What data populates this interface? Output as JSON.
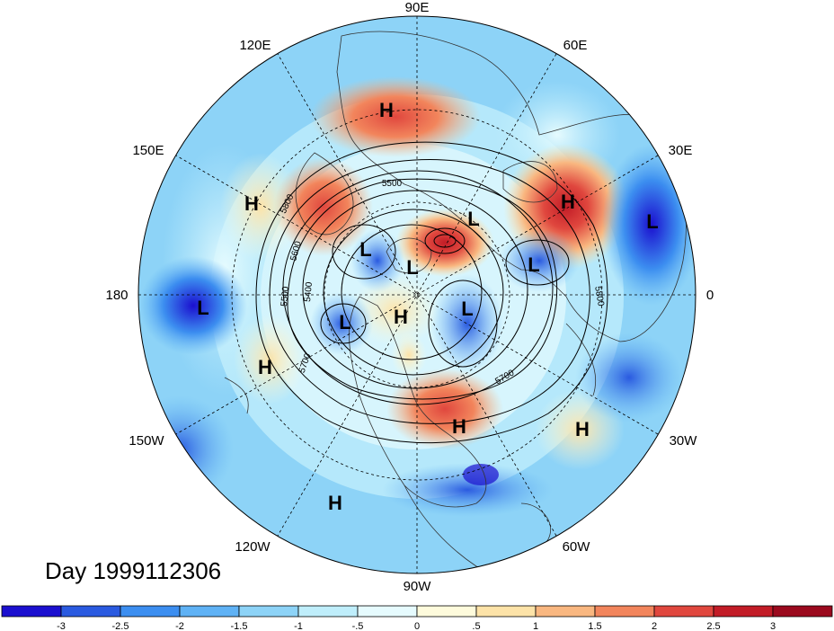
{
  "title": "Day 1999112306",
  "longitude_labels": [
    "90E",
    "60E",
    "30E",
    "0",
    "30W",
    "60W",
    "90W",
    "120W",
    "150W",
    "180",
    "150E",
    "120E"
  ],
  "pressure_systems": [
    {
      "type": "H"
    },
    {
      "type": "H"
    },
    {
      "type": "H"
    },
    {
      "type": "H"
    },
    {
      "type": "H"
    },
    {
      "type": "H"
    },
    {
      "type": "H"
    },
    {
      "type": "L"
    },
    {
      "type": "L"
    },
    {
      "type": "L"
    },
    {
      "type": "L"
    },
    {
      "type": "L"
    },
    {
      "type": "L"
    },
    {
      "type": "L"
    },
    {
      "type": "L"
    }
  ],
  "contour_labels": [
    "5500",
    "5800",
    "5600",
    "5500",
    "5400",
    "5700",
    "5700",
    "5800"
  ],
  "colorbar": {
    "tick_labels": [
      "-3",
      "-2.5",
      "-2",
      "-1.5",
      "-1",
      "-.5",
      "0",
      ".5",
      "1",
      "1.5",
      "2",
      "2.5",
      "3"
    ],
    "colors": [
      "#1b0fcf",
      "#2a5ae0",
      "#3c8ef0",
      "#5fb2f5",
      "#8dd3f7",
      "#bfeefb",
      "#e6fbfe",
      "#fefbdc",
      "#fde3a8",
      "#f9b780",
      "#f2855c",
      "#e0473e",
      "#c21c27",
      "#9b0a1e"
    ]
  }
}
